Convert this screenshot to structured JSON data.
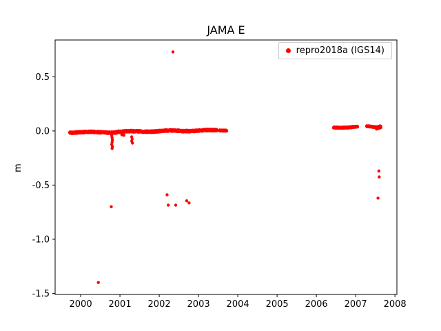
{
  "chart_data": {
    "type": "scatter",
    "title": "JAMA E",
    "xlabel": "",
    "ylabel": "m",
    "series_name": "repro2018a (IGS14)",
    "marker_color": "#ff0000",
    "marker_style": "dot",
    "legend_position": "upper right",
    "grid": false,
    "xlim": [
      1999.35,
      2008.05
    ],
    "ylim": [
      -1.51,
      0.84
    ],
    "x_ticks": [
      2000,
      2001,
      2002,
      2003,
      2004,
      2005,
      2006,
      2007,
      2008
    ],
    "y_ticks": [
      -1.5,
      -1.0,
      -0.5,
      0.0,
      0.5
    ],
    "axis_color": "#000000",
    "legend_border_color": "#cccccc",
    "dense_segments": [
      {
        "x0": 1999.72,
        "x1": 2000.92,
        "y0": -0.012,
        "y1": -0.012,
        "jitter": 0.008
      },
      {
        "x0": 2000.92,
        "x1": 2002.3,
        "y0": -0.008,
        "y1": 0.0,
        "jitter": 0.008
      },
      {
        "x0": 2002.3,
        "x1": 2003.47,
        "y0": 0.0,
        "y1": 0.005,
        "jitter": 0.008
      },
      {
        "x0": 2003.53,
        "x1": 2003.72,
        "y0": 0.005,
        "y1": 0.007,
        "jitter": 0.005
      },
      {
        "x0": 2006.44,
        "x1": 2007.05,
        "y0": 0.03,
        "y1": 0.04,
        "jitter": 0.005
      },
      {
        "x0": 2007.28,
        "x1": 2007.52,
        "y0": 0.04,
        "y1": 0.034,
        "jitter": 0.005
      },
      {
        "x0": 2007.53,
        "x1": 2007.64,
        "y0": 0.028,
        "y1": 0.042,
        "jitter": 0.01,
        "step": 0.0012
      }
    ],
    "outliers": [
      [
        2000.45,
        -1.4
      ],
      [
        2000.78,
        -0.7
      ],
      [
        2000.79,
        -0.045
      ],
      [
        2000.8,
        -0.065
      ],
      [
        2000.81,
        -0.085
      ],
      [
        2000.8,
        -0.105
      ],
      [
        2000.79,
        -0.125
      ],
      [
        2000.81,
        -0.145
      ],
      [
        2000.8,
        -0.162
      ],
      [
        2001.05,
        -0.035
      ],
      [
        2001.1,
        -0.04
      ],
      [
        2001.3,
        -0.055
      ],
      [
        2001.31,
        -0.075
      ],
      [
        2001.3,
        -0.095
      ],
      [
        2001.32,
        -0.112
      ],
      [
        2002.2,
        -0.59
      ],
      [
        2002.23,
        -0.685
      ],
      [
        2002.35,
        0.73
      ],
      [
        2002.42,
        -0.685
      ],
      [
        2002.7,
        -0.645
      ],
      [
        2002.76,
        -0.665
      ],
      [
        2007.59,
        -0.37
      ],
      [
        2007.6,
        -0.425
      ],
      [
        2007.57,
        -0.62
      ]
    ]
  }
}
